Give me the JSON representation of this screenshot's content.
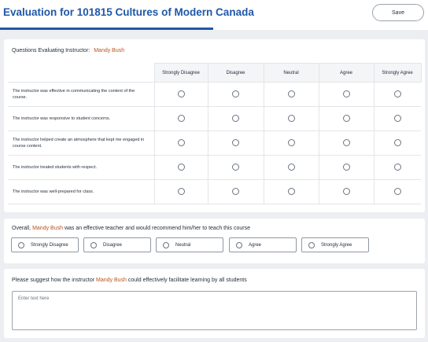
{
  "header": {
    "title": "Evaluation for 101815 Cultures of Modern Canada",
    "save_label": "Save"
  },
  "matrix": {
    "heading": "Questions Evaluating Instructor:",
    "instructor": "Mandy Bush",
    "columns": [
      "Strongly Disagree",
      "Disagree",
      "Neutral",
      "Agree",
      "Strongly Agree"
    ],
    "questions": [
      "The instructor was effective in communicating the content of the course.",
      "The instructor was responsive to student concerns.",
      "The instructor helped create an atmosphere that kept me engaged in course content.",
      "The instructor treated students with respect.",
      "The instructor was well-prepared for class."
    ]
  },
  "overall": {
    "prefix": "Overall,",
    "instructor": "Mandy Bush",
    "suffix": "was an effective teacher and would recommend him/her to teach this course",
    "options": [
      "Strongly Disagree",
      "Disagree",
      "Neutral",
      "Agree",
      "Strongly Agree"
    ]
  },
  "suggest": {
    "prefix": "Please suggest how the instructor",
    "instructor": "Mandy Bush",
    "suffix": "could effectively facilitate learning by all students",
    "placeholder": "Enter text here"
  }
}
